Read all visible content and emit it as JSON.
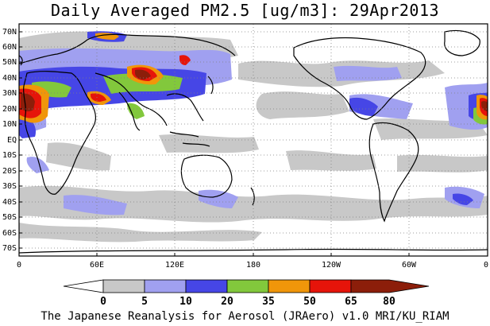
{
  "title": "Daily Averaged PM2.5 [ug/m3]: 29Apr2013",
  "footer": "The Japanese Reanalysis for Aerosol (JRAero) v1.0 MRI/KU_RIAM",
  "lat_labels": [
    "70N",
    "60N",
    "50N",
    "40N",
    "30N",
    "20N",
    "10N",
    "EQ",
    "10S",
    "20S",
    "30S",
    "40S",
    "50S",
    "60S",
    "70S"
  ],
  "lon_labels": [
    "0",
    "60E",
    "120E",
    "180",
    "120W",
    "60W",
    "0"
  ],
  "colorbar": {
    "labels": [
      "0",
      "5",
      "10",
      "20",
      "35",
      "50",
      "65",
      "80"
    ],
    "colors": {
      "c0": "#ffffff",
      "c5": "#c8c8c8",
      "c10": "#a0a0f0",
      "c20": "#4646e6",
      "c35": "#82c83c",
      "c50": "#f0960a",
      "c65": "#e6140a",
      "c80": "#8c1e0a"
    }
  }
}
